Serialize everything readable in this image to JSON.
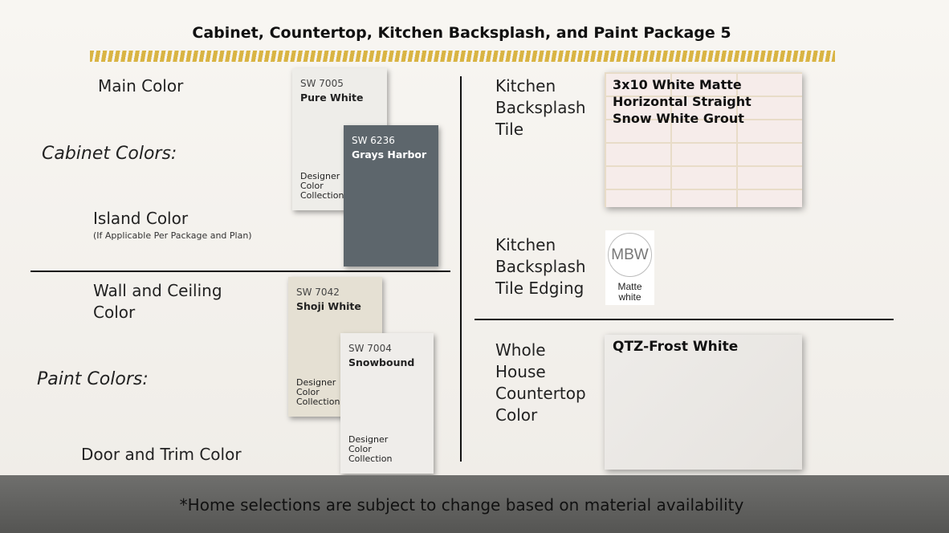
{
  "title": "Cabinet, Countertop, Kitchen Backsplash, and Paint Package 5",
  "left": {
    "main_color": "Main Color",
    "cabinet_colors": "Cabinet Colors:",
    "island_color": "Island Color",
    "island_note": "(If Applicable Per Package and Plan)",
    "wall_ceiling": "Wall and Ceiling Color",
    "paint_colors": "Paint Colors:",
    "door_trim": "Door and Trim Color"
  },
  "chips": [
    {
      "code": "SW 7005",
      "name": "Pure White",
      "collection": "Designer Color Collection",
      "color": "#eeede9"
    },
    {
      "code": "SW 6236",
      "name": "Grays Harbor",
      "color": "#5d666c"
    },
    {
      "code": "SW 7042",
      "name": "Shoji White",
      "collection": "Designer Color Collection",
      "color": "#e5e0d3"
    },
    {
      "code": "SW 7004",
      "name": "Snowbound",
      "collection": "Designer Color Collection",
      "color": "#efedea"
    }
  ],
  "right": {
    "backsplash_label": "Kitchen Backsplash Tile",
    "backsplash_desc": [
      "3x10 White Matte",
      "Horizontal Straight",
      "Snow White Grout"
    ],
    "edging_label": "Kitchen Backsplash Tile Edging",
    "edging_logo": "MBW",
    "edging_desc": "Matte white",
    "countertop_label": "Whole House Countertop Color",
    "countertop_desc": "QTZ-Frost White"
  },
  "footer": "*Home selections are subject to change based on material availability",
  "colors": {
    "accent_stripe": "#d9b444"
  }
}
